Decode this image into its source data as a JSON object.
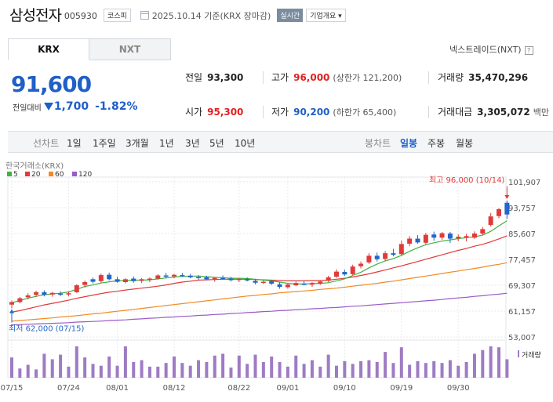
{
  "header": {
    "name": "삼성전자",
    "code": "005930",
    "market_tag": "코스피",
    "date_text": "2025.10.14 기준(KRX 장마감)",
    "realtime_label": "실시간",
    "overview_label": "기업개요 ▾"
  },
  "tabs": [
    {
      "label": "KRX",
      "active": true
    },
    {
      "label": "NXT",
      "active": false
    }
  ],
  "nextrade_label": "넥스트레이드(NXT)",
  "price": {
    "current": "91,600",
    "change_label": "전일대비",
    "change_value": "1,700",
    "change_pct": "-1.82%",
    "direction": "down"
  },
  "stats": {
    "prev": {
      "label": "전일",
      "value": "93,300"
    },
    "high": {
      "label": "고가",
      "value": "96,000",
      "sub": "(상한가 121,200)"
    },
    "volume": {
      "label": "거래량",
      "value": "35,470,296"
    },
    "open": {
      "label": "시가",
      "value": "95,300"
    },
    "low": {
      "label": "저가",
      "value": "90,200",
      "sub": "(하한가 65,400)"
    },
    "amount": {
      "label": "거래대금",
      "value": "3,305,072",
      "unit": "백만"
    }
  },
  "period_bar": {
    "label": "선차트",
    "periods": [
      "1일",
      "1주일",
      "3개월",
      "1년",
      "3년",
      "5년",
      "10년"
    ],
    "candle_label": "봉차트",
    "candles": [
      "일봉",
      "주봉",
      "월봉"
    ],
    "active_candle": "일봉"
  },
  "chart_data": {
    "type": "candlestick",
    "source_label": "한국거래소(KRX)",
    "legend": [
      {
        "name": "5",
        "color": "#3fb33f"
      },
      {
        "name": "20",
        "color": "#e03a3a"
      },
      {
        "name": "60",
        "color": "#f08a24"
      },
      {
        "name": "120",
        "color": "#9b5ac8"
      }
    ],
    "y_ticks": [
      101907,
      93757,
      85607,
      77457,
      69307,
      61157,
      53007
    ],
    "y_tick_labels": [
      "101,907",
      "93,757",
      "85,607",
      "77,457",
      "69,307",
      "61,157",
      "53,007"
    ],
    "ylim": [
      53007,
      101907
    ],
    "x_labels": [
      {
        "label": "07/15",
        "index": 0
      },
      {
        "label": "07/24",
        "index": 7
      },
      {
        "label": "08/01",
        "index": 13
      },
      {
        "label": "08/12",
        "index": 20
      },
      {
        "label": "08/22",
        "index": 28
      },
      {
        "label": "09/01",
        "index": 34
      },
      {
        "label": "09/10",
        "index": 41
      },
      {
        "label": "09/19",
        "index": 48
      },
      {
        "label": "09/30",
        "index": 55
      }
    ],
    "high_annotation": "최고 96,000 (10/14)",
    "low_annotation": "최저 62,000 (07/15)",
    "volume_label": "거래량",
    "up_color": "#e03a3a",
    "down_color": "#2266cc",
    "candles": [
      [
        63200,
        64500,
        62000,
        64000
      ],
      [
        64000,
        65600,
        63600,
        65200
      ],
      [
        65500,
        66800,
        64900,
        66100
      ],
      [
        66300,
        67600,
        65600,
        67100
      ],
      [
        67100,
        67700,
        65800,
        66300
      ],
      [
        66400,
        67200,
        65700,
        66900
      ],
      [
        66700,
        67400,
        65900,
        66300
      ],
      [
        66400,
        67300,
        65800,
        66800
      ],
      [
        67100,
        69600,
        66900,
        69300
      ],
      [
        69400,
        70800,
        68600,
        70300
      ],
      [
        71200,
        71700,
        69900,
        70400
      ],
      [
        70600,
        73000,
        70100,
        72500
      ],
      [
        72600,
        73300,
        70800,
        71200
      ],
      [
        71200,
        72000,
        70100,
        70400
      ],
      [
        70300,
        71500,
        69900,
        71200
      ],
      [
        71400,
        72100,
        70100,
        70600
      ],
      [
        70700,
        71600,
        70000,
        71200
      ],
      [
        71000,
        71800,
        70300,
        71400
      ],
      [
        71400,
        72800,
        71100,
        72400
      ],
      [
        72400,
        73200,
        71500,
        72000
      ],
      [
        72100,
        72900,
        71500,
        72600
      ],
      [
        72500,
        73200,
        71900,
        72300
      ],
      [
        72300,
        72900,
        71500,
        71800
      ],
      [
        71900,
        72500,
        71000,
        71600
      ],
      [
        71800,
        72300,
        70900,
        71200
      ],
      [
        71200,
        71900,
        70400,
        71600
      ],
      [
        71600,
        72400,
        71000,
        71400
      ],
      [
        71400,
        72000,
        70500,
        70900
      ],
      [
        71000,
        71600,
        70300,
        71300
      ],
      [
        71200,
        71800,
        70500,
        70800
      ],
      [
        70700,
        71200,
        69600,
        70100
      ],
      [
        70200,
        70900,
        69700,
        70400
      ],
      [
        70600,
        71000,
        69400,
        69800
      ],
      [
        69600,
        70300,
        68200,
        68800
      ],
      [
        68700,
        70000,
        68200,
        69500
      ],
      [
        69300,
        70500,
        69000,
        70000
      ],
      [
        69800,
        70600,
        69300,
        69500
      ],
      [
        69500,
        70300,
        68800,
        70000
      ],
      [
        69800,
        70900,
        69400,
        70500
      ],
      [
        70700,
        72300,
        70300,
        71800
      ],
      [
        72000,
        74300,
        71600,
        73600
      ],
      [
        73500,
        74200,
        72200,
        72700
      ],
      [
        72800,
        75800,
        72500,
        75200
      ],
      [
        75300,
        76800,
        74600,
        76100
      ],
      [
        76500,
        79400,
        76000,
        78600
      ],
      [
        78600,
        79600,
        76800,
        77500
      ],
      [
        77600,
        80100,
        77000,
        79400
      ],
      [
        79400,
        80800,
        78400,
        78900
      ],
      [
        79100,
        83400,
        78700,
        82300
      ],
      [
        82400,
        84800,
        81600,
        84000
      ],
      [
        84000,
        85100,
        82400,
        82800
      ],
      [
        82700,
        85800,
        82200,
        85200
      ],
      [
        85300,
        86200,
        83300,
        84300
      ],
      [
        84300,
        86100,
        83600,
        85700
      ],
      [
        85600,
        86100,
        82600,
        84000
      ],
      [
        84100,
        85300,
        83200,
        84600
      ],
      [
        84400,
        85500,
        83100,
        84800
      ],
      [
        84300,
        86300,
        83900,
        85600
      ],
      [
        85600,
        87700,
        85000,
        87000
      ],
      [
        88300,
        92100,
        87800,
        91000
      ],
      [
        91100,
        93600,
        90400,
        93300
      ],
      [
        95300,
        96000,
        90200,
        91600
      ]
    ],
    "ma5": [
      63800,
      64500,
      65200,
      65800,
      66300,
      66600,
      66800,
      67200,
      68000,
      68900,
      69400,
      70000,
      70400,
      70700,
      70800,
      70900,
      70900,
      71000,
      71300,
      71600,
      71900,
      72100,
      72200,
      72200,
      72000,
      71800,
      71700,
      71500,
      71500,
      71400,
      71200,
      70900,
      70700,
      70300,
      69900,
      69700,
      69700,
      69800,
      69900,
      70100,
      70700,
      71300,
      72400,
      73400,
      74800,
      76000,
      77000,
      77700,
      78700,
      80000,
      81100,
      82100,
      82700,
      83200,
      83600,
      84000,
      84300,
      84600,
      85100,
      86300,
      88000,
      89600
    ],
    "ma20": [
      60800,
      61300,
      61900,
      62500,
      63100,
      63600,
      64100,
      64600,
      65200,
      65700,
      66200,
      66700,
      67100,
      67400,
      67800,
      68100,
      68400,
      68700,
      69000,
      69400,
      69900,
      70300,
      70600,
      70900,
      71000,
      71100,
      71200,
      71200,
      71200,
      71200,
      71100,
      71000,
      70900,
      70800,
      70700,
      70700,
      70700,
      70800,
      70800,
      70900,
      71200,
      71500,
      71900,
      72400,
      72900,
      73500,
      74100,
      74800,
      75400,
      76100,
      76800,
      77500,
      78200,
      78900,
      79600,
      80300,
      80900,
      81600,
      82200,
      83000,
      83900,
      84900
    ],
    "ma60": [
      58000,
      58200,
      58400,
      58600,
      58800,
      59000,
      59300,
      59500,
      59700,
      60000,
      60300,
      60500,
      60800,
      61100,
      61400,
      61700,
      62000,
      62300,
      62600,
      62900,
      63200,
      63500,
      63800,
      64100,
      64400,
      64700,
      65000,
      65300,
      65600,
      65900,
      66100,
      66400,
      66600,
      66900,
      67100,
      67300,
      67500,
      67700,
      68000,
      68200,
      68400,
      68700,
      69000,
      69300,
      69600,
      69900,
      70300,
      70600,
      71000,
      71400,
      71800,
      72200,
      72600,
      73000,
      73400,
      73800,
      74200,
      74600,
      75000,
      75500,
      75900,
      76400
    ],
    "ma120": [
      56800,
      56900,
      57000,
      57100,
      57200,
      57300,
      57400,
      57500,
      57700,
      57800,
      57900,
      58000,
      58200,
      58300,
      58400,
      58600,
      58700,
      58900,
      59000,
      59200,
      59300,
      59500,
      59600,
      59800,
      59900,
      60100,
      60200,
      60400,
      60500,
      60700,
      60800,
      61000,
      61100,
      61300,
      61400,
      61600,
      61700,
      61900,
      62000,
      62200,
      62300,
      62500,
      62700,
      62800,
      63000,
      63200,
      63400,
      63600,
      63800,
      64000,
      64200,
      64400,
      64600,
      64800,
      65100,
      65300,
      65500,
      65800,
      66000,
      66300,
      66500,
      66800
    ],
    "volume": [
      22,
      10,
      14,
      9,
      26,
      20,
      25,
      12,
      34,
      22,
      15,
      13,
      23,
      13,
      34,
      17,
      19,
      12,
      12,
      16,
      23,
      16,
      13,
      19,
      17,
      24,
      26,
      11,
      24,
      15,
      25,
      17,
      23,
      17,
      12,
      24,
      15,
      19,
      12,
      25,
      13,
      18,
      15,
      18,
      19,
      17,
      28,
      16,
      33,
      14,
      18,
      16,
      18,
      16,
      19,
      13,
      17,
      26,
      30,
      34,
      33,
      20
    ]
  }
}
